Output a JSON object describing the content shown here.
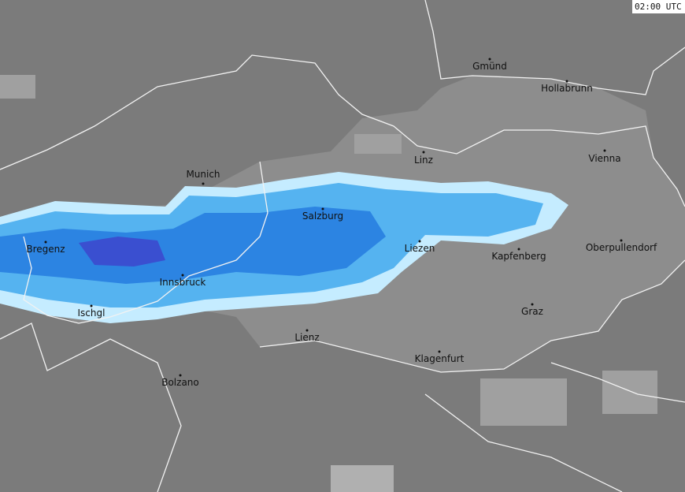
{
  "timestamp": "02:00 UTC",
  "cities": [
    "Gmünd",
    "Hollabrunn",
    "Linz",
    "Vienna",
    "Munich",
    "Salzburg",
    "Bregenz",
    "Liezen",
    "Kapfenberg",
    "Oberpullendorf",
    "Innsbruck",
    "Ischgl",
    "Graz",
    "Lienz",
    "Klagenfurt",
    "Bolzano"
  ]
}
